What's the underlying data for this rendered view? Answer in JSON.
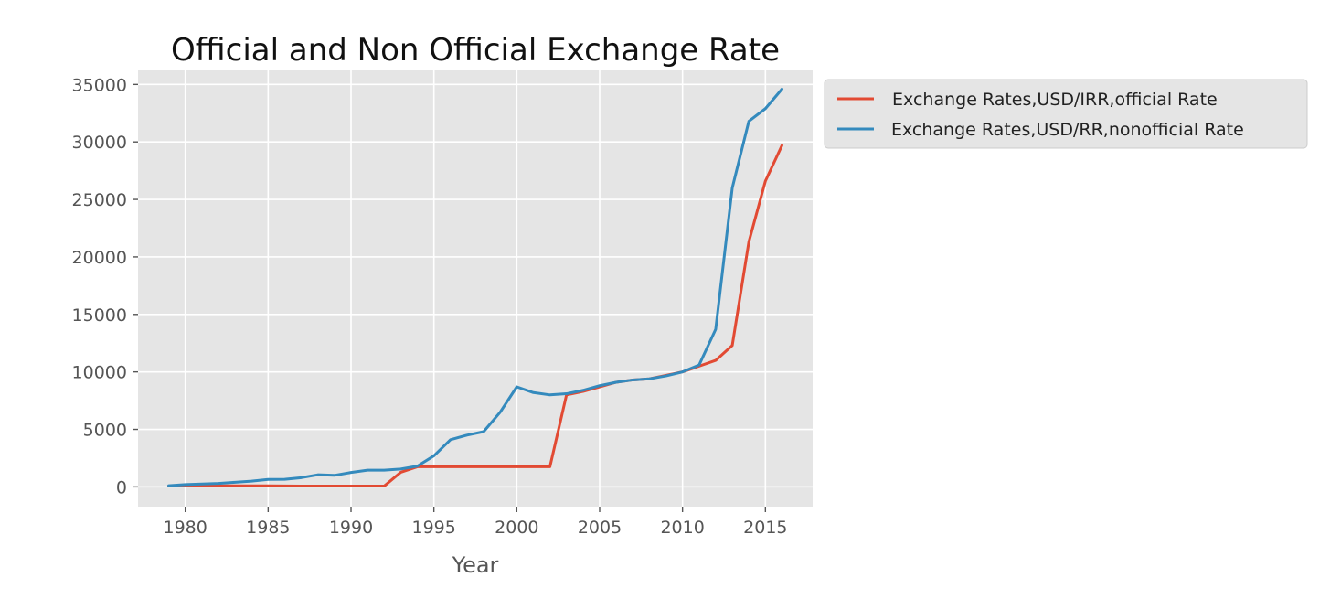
{
  "chart_data": {
    "type": "line",
    "title": "Official and Non Official Exchange Rate",
    "xlabel": "Year",
    "ylabel": "",
    "xlim": [
      1977.15,
      2017.85
    ],
    "ylim": [
      -1720,
      36300
    ],
    "xticks": [
      1980,
      1985,
      1990,
      1995,
      2000,
      2005,
      2010,
      2015
    ],
    "yticks": [
      0,
      5000,
      10000,
      15000,
      20000,
      25000,
      30000,
      35000
    ],
    "grid": true,
    "legend_position": "outside-upper-right",
    "x": [
      1979,
      1980,
      1981,
      1982,
      1983,
      1984,
      1985,
      1986,
      1987,
      1988,
      1989,
      1990,
      1991,
      1992,
      1993,
      1994,
      1995,
      1996,
      1997,
      1998,
      1999,
      2000,
      2001,
      2002,
      2003,
      2004,
      2005,
      2006,
      2007,
      2008,
      2009,
      2010,
      2011,
      2012,
      2013,
      2014,
      2015,
      2016
    ],
    "series": [
      {
        "name": " Exchange Rates,USD/IRR,official Rate",
        "color": "#e24a33",
        "values": [
          70,
          70,
          78,
          83,
          86,
          90,
          91,
          78,
          71,
          68,
          72,
          68,
          65,
          65,
          1267,
          1749,
          1750,
          1750,
          1750,
          1750,
          1750,
          1750,
          1750,
          1750,
          8000,
          8300,
          8700,
          9100,
          9300,
          9400,
          9700,
          10000,
          10500,
          11000,
          12300,
          21300,
          26600,
          29700
        ]
      },
      {
        "name": "Exchange Rates,USD/RR,nonofficial Rate",
        "color": "#348abd",
        "values": [
          100,
          200,
          250,
          300,
          400,
          500,
          650,
          660,
          800,
          1050,
          1000,
          1250,
          1450,
          1450,
          1550,
          1800,
          2700,
          4100,
          4500,
          4800,
          6500,
          8700,
          8200,
          8000,
          8100,
          8400,
          8800,
          9100,
          9300,
          9400,
          9650,
          10000,
          10600,
          13700,
          26000,
          31800,
          32900,
          34600
        ]
      }
    ]
  }
}
